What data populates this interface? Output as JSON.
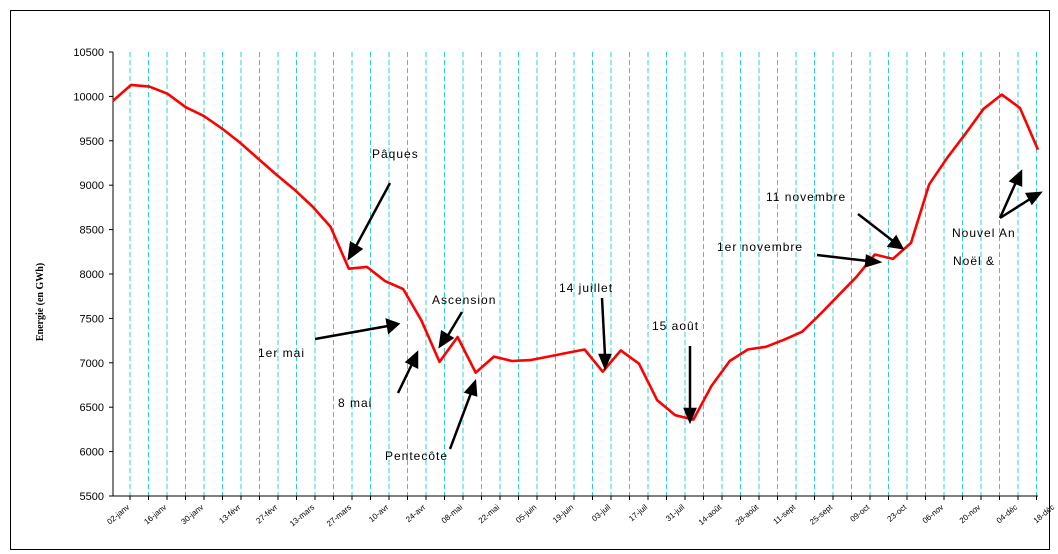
{
  "chart_data": {
    "type": "line",
    "ylabel": "Energie (en GWh)",
    "xlabel": "",
    "title": "",
    "ylim": [
      5500,
      10500
    ],
    "yticks": [
      5500,
      6000,
      6500,
      7000,
      7500,
      8000,
      8500,
      9000,
      9500,
      10000,
      10500
    ],
    "grid": "vertical dashed",
    "line_color": "#ff0000",
    "grid_color": "#33cccc",
    "x_labels": [
      "02-janv",
      "16-janv",
      "30-janv",
      "13-févr",
      "27-févr",
      "13-mars",
      "27-mars",
      "10-avr",
      "24-avr",
      "08-mai",
      "22-mai",
      "05-juin",
      "19-juin",
      "03-juil",
      "17-juil",
      "31-juil",
      "14-août",
      "28-août",
      "11-sept",
      "25-sept",
      "09-oct",
      "23-oct",
      "06-nov",
      "20-nov",
      "04-déc",
      "18-déc"
    ],
    "series": [
      {
        "values": [
          9950,
          10130,
          10110,
          10030,
          9880,
          9780,
          9640,
          9480,
          9300,
          9120,
          8950,
          8760,
          8530,
          8060,
          8080,
          7920,
          7830,
          7480,
          7010,
          7290,
          6890,
          7070,
          7020,
          7030,
          7070,
          7110,
          7150,
          6900,
          7140,
          6990,
          6580,
          6410,
          6360,
          6740,
          7020,
          7150,
          7180,
          7260,
          7350,
          7550,
          7760,
          7970,
          8220,
          8170,
          8350,
          9010,
          9310,
          9580,
          9860,
          10020,
          9870,
          9400
        ]
      }
    ],
    "annotations": [
      {
        "text": "Pâques"
      },
      {
        "text": "Ascension"
      },
      {
        "text": "1er mai"
      },
      {
        "text": "8 mai"
      },
      {
        "text": "Pentecôte"
      },
      {
        "text": "14 juillet"
      },
      {
        "text": "15 août"
      },
      {
        "text": "11 novembre"
      },
      {
        "text": "1er novembre"
      },
      {
        "text": "Nouvel An"
      },
      {
        "text": "Noël &"
      }
    ]
  }
}
